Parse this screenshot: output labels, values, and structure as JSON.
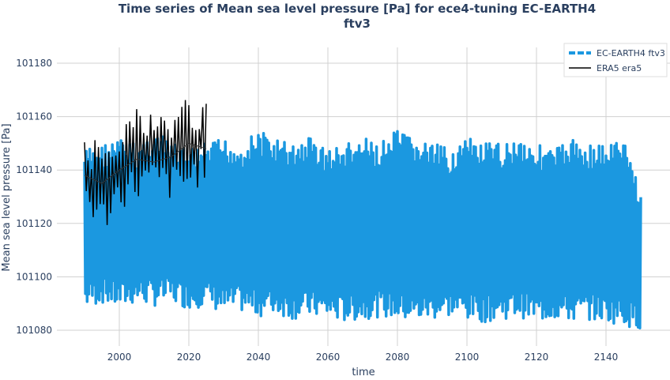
{
  "chart_data": {
    "type": "line",
    "title_line1": "Time series of Mean sea level pressure [Pa] for ece4-tuning EC-EARTH4",
    "title_line2": "ftv3",
    "xlabel": "time",
    "ylabel": "Mean sea level pressure [Pa]",
    "xlim": [
      1985,
      2155
    ],
    "ylim": [
      101075,
      101186
    ],
    "xticks": [
      2000,
      2020,
      2040,
      2060,
      2080,
      2100,
      2120,
      2140
    ],
    "yticks": [
      101080,
      101100,
      101120,
      101140,
      101160,
      101180
    ],
    "grid": true,
    "legend_position": "top-right",
    "colors": {
      "ec_earth": "#1b98e0",
      "era5": "#000000",
      "grid": "#d0d0d0",
      "title": "#2a3f5f"
    },
    "series": [
      {
        "name": "EC-EARTH4 ftv3",
        "years": [
          1990,
          1995,
          2000,
          2005,
          2010,
          2015,
          2020,
          2025,
          2030,
          2035,
          2040,
          2045,
          2050,
          2055,
          2060,
          2065,
          2070,
          2075,
          2080,
          2085,
          2090,
          2095,
          2100,
          2105,
          2110,
          2115,
          2120,
          2125,
          2130,
          2135,
          2140,
          2145,
          2150
        ],
        "upper": [
          101148,
          101150,
          101152,
          101150,
          101155,
          101150,
          101148,
          101150,
          101152,
          101150,
          101155,
          101152,
          101150,
          101153,
          101148,
          101150,
          101152,
          101150,
          101155,
          101152,
          101150,
          101148,
          101152,
          101150,
          101150,
          101153,
          101150,
          101148,
          101152,
          101150,
          101150,
          101152,
          101134
        ],
        "lower": [
          101088,
          101090,
          101088,
          101090,
          101089,
          101090,
          101088,
          101089,
          101086,
          101087,
          101085,
          101086,
          101084,
          101085,
          101084,
          101083,
          101084,
          101085,
          101084,
          101083,
          101084,
          101085,
          101084,
          101083,
          101084,
          101085,
          101083,
          101084,
          101083,
          101084,
          101083,
          101082,
          101080
        ]
      },
      {
        "name": "ERA5 era5",
        "years": [
          1990,
          1995,
          2000,
          2005,
          2010,
          2015,
          2020,
          2025
        ],
        "upper": [
          101152,
          101155,
          101160,
          101165,
          101162,
          101163,
          101170,
          101165
        ],
        "lower": [
          101125,
          101115,
          101125,
          101128,
          101130,
          101128,
          101130,
          101136
        ],
        "mean": [
          101138,
          101135,
          101140,
          101144,
          101143,
          101145,
          101150,
          101148
        ]
      }
    ]
  }
}
